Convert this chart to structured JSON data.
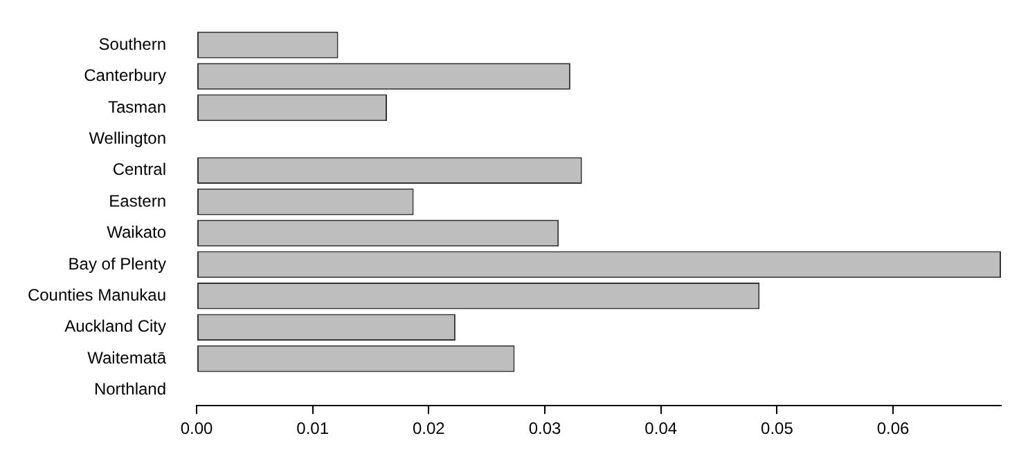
{
  "chart_data": {
    "type": "bar",
    "orientation": "horizontal",
    "categories": [
      "Southern",
      "Canterbury",
      "Tasman",
      "Wellington",
      "Central",
      "Eastern",
      "Waikato",
      "Bay of Plenty",
      "Counties Manukau",
      "Auckland City",
      "Waitematā",
      "Northland"
    ],
    "values": [
      0.0122,
      0.0322,
      0.0164,
      null,
      0.0332,
      0.0187,
      0.0312,
      0.0693,
      0.0485,
      0.0223,
      0.0274,
      null
    ],
    "color": "#bebebe",
    "xlim": [
      0,
      0.0693
    ],
    "xticks": [
      {
        "value": 0,
        "label": "0.00"
      },
      {
        "value": 0.01,
        "label": "0.01"
      },
      {
        "value": 0.02,
        "label": "0.02"
      },
      {
        "value": 0.03,
        "label": "0.03"
      },
      {
        "value": 0.04,
        "label": "0.04"
      },
      {
        "value": 0.05,
        "label": "0.05"
      },
      {
        "value": 0.06,
        "label": "0.06"
      }
    ],
    "grid": false,
    "legend": false
  }
}
